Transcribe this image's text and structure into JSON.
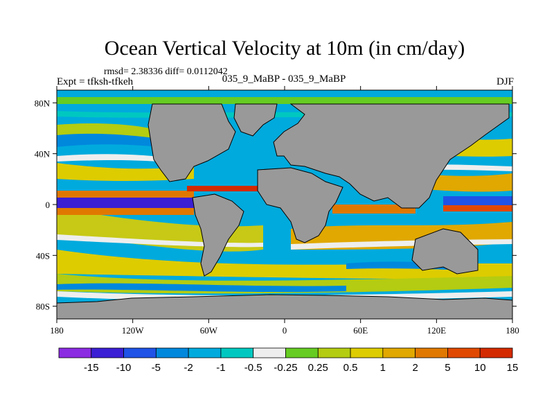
{
  "title": "Ocean Vertical Velocity at 10m (in cm/day)",
  "stats": "rmsd= 2.38336 diff= 0.0112042",
  "experiment": "Expt = tfksh-tfkeh",
  "center_label": "035_9_MaBP - 035_9_MaBP",
  "season": "DJF",
  "map": {
    "lon_labels": [
      "180",
      "120W",
      "60W",
      "0",
      "60E",
      "120E",
      "180"
    ],
    "lat_labels": [
      "80N",
      "40N",
      "0",
      "40S",
      "80S"
    ],
    "land_color": "#999999"
  },
  "colorbar": {
    "colors": [
      "#8b2be2",
      "#3b1fd4",
      "#1f52e6",
      "#0088dd",
      "#00aadd",
      "#00c8c0",
      "#eeeeee",
      "#66cc22",
      "#b4cc11",
      "#ddcc00",
      "#e0a800",
      "#e07800",
      "#e04800",
      "#d42a00"
    ],
    "labels": [
      "-15",
      "-10",
      "-5",
      "-2",
      "-1",
      "-0.5",
      "-0.25",
      "0.25",
      "0.5",
      "1",
      "2",
      "5",
      "10",
      "15"
    ]
  }
}
